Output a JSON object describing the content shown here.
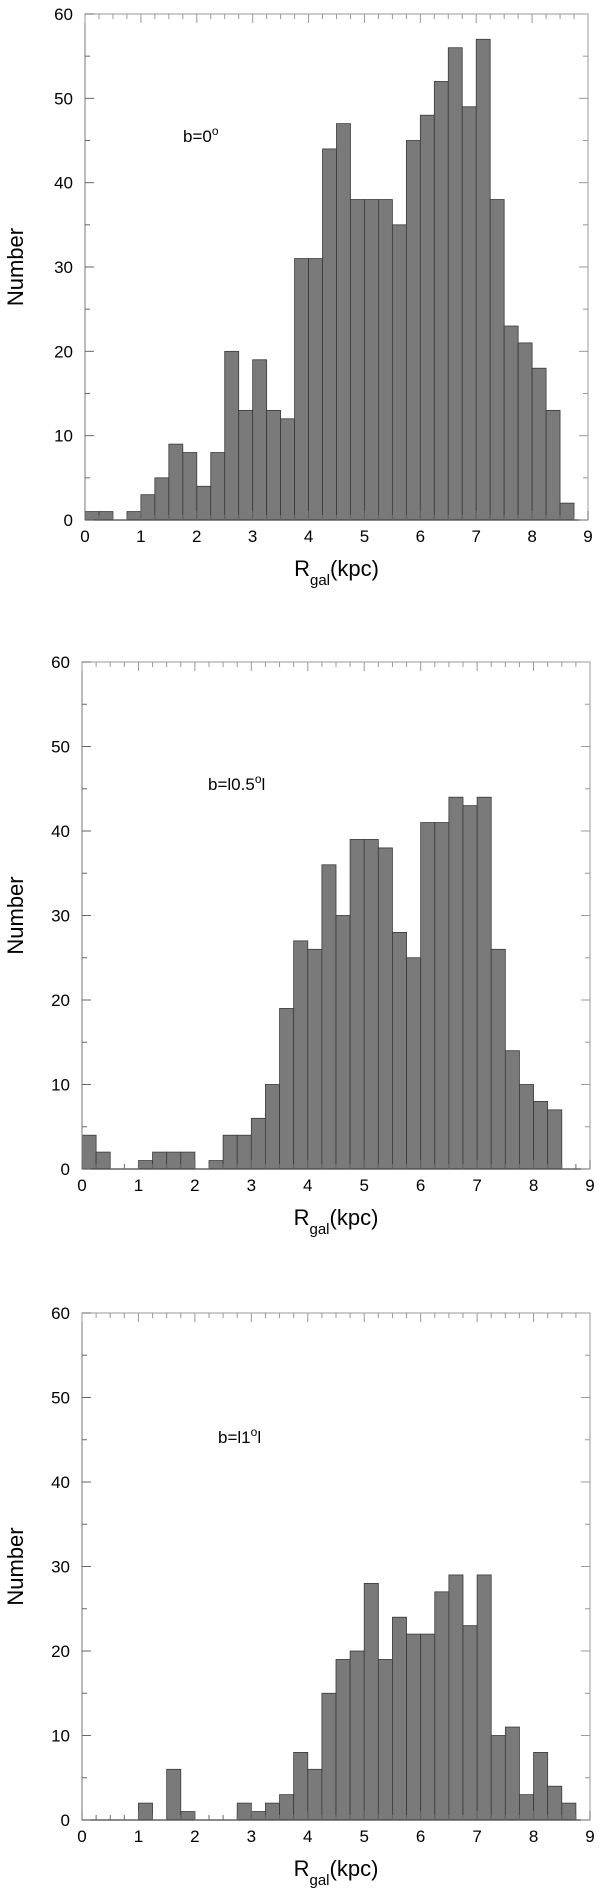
{
  "chart_data": [
    {
      "type": "bar",
      "annotation": {
        "prefix": "b=",
        "value": "0",
        "sup": "o",
        "suffix": ""
      },
      "xlabel": {
        "main": "R",
        "sub": "gal",
        "rest": "(kpc)"
      },
      "ylabel": "Number",
      "xlim": [
        0,
        9
      ],
      "ylim": [
        0,
        60
      ],
      "xticks": [
        0,
        1,
        2,
        3,
        4,
        5,
        6,
        7,
        8,
        9
      ],
      "yticks": [
        0,
        10,
        20,
        30,
        40,
        50,
        60
      ],
      "bin_width": 0.25,
      "bar_color": "#7a7a7a",
      "x": [
        0.0,
        0.25,
        0.5,
        0.75,
        1.0,
        1.25,
        1.5,
        1.75,
        2.0,
        2.25,
        2.5,
        2.75,
        3.0,
        3.25,
        3.5,
        3.75,
        4.0,
        4.25,
        4.5,
        4.75,
        5.0,
        5.25,
        5.5,
        5.75,
        6.0,
        6.25,
        6.5,
        6.75,
        7.0,
        7.25,
        7.5,
        7.75,
        8.0,
        8.25,
        8.5
      ],
      "values": [
        1,
        1,
        0,
        1,
        3,
        5,
        9,
        8,
        4,
        8,
        20,
        13,
        19,
        13,
        12,
        31,
        31,
        44,
        47,
        38,
        38,
        38,
        35,
        45,
        48,
        52,
        56,
        49,
        57,
        38,
        23,
        21,
        18,
        13,
        2
      ]
    },
    {
      "type": "bar",
      "annotation": {
        "prefix": "b=l",
        "value": "0.5",
        "sup": "o",
        "suffix": "l"
      },
      "xlabel": {
        "main": "R",
        "sub": "gal",
        "rest": "(kpc)"
      },
      "ylabel": "Number",
      "xlim": [
        0,
        9
      ],
      "ylim": [
        0,
        60
      ],
      "xticks": [
        0,
        1,
        2,
        3,
        4,
        5,
        6,
        7,
        8,
        9
      ],
      "yticks": [
        0,
        10,
        20,
        30,
        40,
        50,
        60
      ],
      "bin_width": 0.25,
      "bar_color": "#7a7a7a",
      "x": [
        0.0,
        0.25,
        0.5,
        0.75,
        1.0,
        1.25,
        1.5,
        1.75,
        2.0,
        2.25,
        2.5,
        2.75,
        3.0,
        3.25,
        3.5,
        3.75,
        4.0,
        4.25,
        4.5,
        4.75,
        5.0,
        5.25,
        5.5,
        5.75,
        6.0,
        6.25,
        6.5,
        6.75,
        7.0,
        7.25,
        7.5,
        7.75,
        8.0,
        8.25
      ],
      "values": [
        4,
        2,
        0,
        0,
        1,
        2,
        2,
        2,
        0,
        1,
        4,
        4,
        6,
        10,
        19,
        27,
        26,
        36,
        30,
        39,
        39,
        38,
        28,
        25,
        41,
        41,
        44,
        43,
        44,
        26,
        14,
        10,
        8,
        7
      ]
    },
    {
      "type": "bar",
      "annotation": {
        "prefix": "b=l",
        "value": "1",
        "sup": "o",
        "suffix": "l"
      },
      "xlabel": {
        "main": "R",
        "sub": "gal",
        "rest": "(kpc)"
      },
      "ylabel": "Number",
      "xlim": [
        0,
        9
      ],
      "ylim": [
        0,
        60
      ],
      "xticks": [
        0,
        1,
        2,
        3,
        4,
        5,
        6,
        7,
        8,
        9
      ],
      "yticks": [
        0,
        10,
        20,
        30,
        40,
        50,
        60
      ],
      "bin_width": 0.25,
      "bar_color": "#7a7a7a",
      "x": [
        0.0,
        0.25,
        0.5,
        0.75,
        1.0,
        1.25,
        1.5,
        1.75,
        2.0,
        2.25,
        2.5,
        2.75,
        3.0,
        3.25,
        3.5,
        3.75,
        4.0,
        4.25,
        4.5,
        4.75,
        5.0,
        5.25,
        5.5,
        5.75,
        6.0,
        6.25,
        6.5,
        6.75,
        7.0,
        7.25,
        7.5,
        7.75,
        8.0,
        8.25,
        8.5
      ],
      "values": [
        0,
        0,
        0,
        0,
        2,
        0,
        6,
        1,
        0,
        0,
        0,
        2,
        1,
        2,
        3,
        8,
        6,
        15,
        19,
        20,
        28,
        19,
        24,
        22,
        22,
        27,
        29,
        23,
        29,
        10,
        11,
        3,
        8,
        4,
        2
      ]
    }
  ]
}
